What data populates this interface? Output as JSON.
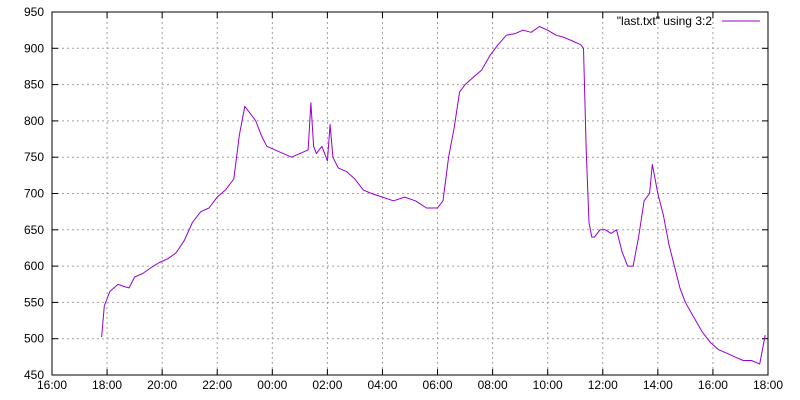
{
  "chart_data": {
    "type": "line",
    "title": "",
    "xlabel": "",
    "ylabel": "",
    "grid": true,
    "legend_placement": "top-right",
    "x_unit": "hours on the time axis (24+ = next day)",
    "xlim": [
      16,
      42
    ],
    "ylim": [
      450,
      950
    ],
    "x_ticks": [
      {
        "v": 16,
        "label": "16:00"
      },
      {
        "v": 18,
        "label": "18:00"
      },
      {
        "v": 20,
        "label": "20:00"
      },
      {
        "v": 22,
        "label": "22:00"
      },
      {
        "v": 24,
        "label": "00:00"
      },
      {
        "v": 26,
        "label": "02:00"
      },
      {
        "v": 28,
        "label": "04:00"
      },
      {
        "v": 30,
        "label": "06:00"
      },
      {
        "v": 32,
        "label": "08:00"
      },
      {
        "v": 34,
        "label": "10:00"
      },
      {
        "v": 36,
        "label": "12:00"
      },
      {
        "v": 38,
        "label": "14:00"
      },
      {
        "v": 40,
        "label": "16:00"
      },
      {
        "v": 42,
        "label": "18:00"
      }
    ],
    "y_ticks": [
      450,
      500,
      550,
      600,
      650,
      700,
      750,
      800,
      850,
      900,
      950
    ],
    "series": [
      {
        "name": "\"last.txt\" using 3:2",
        "color": "#9400d3",
        "x": [
          17.8,
          17.9,
          18.1,
          18.4,
          18.6,
          18.8,
          19.0,
          19.3,
          19.6,
          19.9,
          20.2,
          20.5,
          20.8,
          21.1,
          21.4,
          21.7,
          22.0,
          22.3,
          22.6,
          22.8,
          23.0,
          23.2,
          23.4,
          23.6,
          23.8,
          24.1,
          24.4,
          24.7,
          25.0,
          25.3,
          25.4,
          25.5,
          25.6,
          25.8,
          26.0,
          26.1,
          26.2,
          26.4,
          26.7,
          27.0,
          27.3,
          27.6,
          28.0,
          28.4,
          28.8,
          29.2,
          29.6,
          30.0,
          30.2,
          30.4,
          30.6,
          30.8,
          31.0,
          31.3,
          31.6,
          31.9,
          32.2,
          32.5,
          32.8,
          33.1,
          33.4,
          33.7,
          34.0,
          34.3,
          34.6,
          34.9,
          35.2,
          35.3,
          35.4,
          35.5,
          35.6,
          35.7,
          35.9,
          36.1,
          36.3,
          36.5,
          36.7,
          36.9,
          37.1,
          37.3,
          37.5,
          37.7,
          37.8,
          37.9,
          38.0,
          38.2,
          38.4,
          38.6,
          38.8,
          39.0,
          39.3,
          39.6,
          39.9,
          40.2,
          40.5,
          40.8,
          41.1,
          41.4,
          41.7,
          41.9
        ],
        "y": [
          502,
          545,
          565,
          575,
          572,
          570,
          585,
          590,
          598,
          605,
          610,
          618,
          635,
          660,
          675,
          680,
          695,
          705,
          720,
          780,
          820,
          810,
          800,
          780,
          765,
          760,
          755,
          750,
          755,
          760,
          825,
          765,
          755,
          765,
          745,
          795,
          750,
          735,
          730,
          720,
          705,
          700,
          695,
          690,
          695,
          690,
          680,
          680,
          690,
          750,
          790,
          840,
          850,
          860,
          870,
          890,
          905,
          918,
          920,
          925,
          922,
          930,
          925,
          918,
          915,
          910,
          905,
          900,
          760,
          660,
          640,
          640,
          650,
          650,
          645,
          650,
          620,
          600,
          600,
          640,
          690,
          700,
          740,
          720,
          700,
          670,
          630,
          600,
          570,
          550,
          530,
          510,
          495,
          485,
          480,
          475,
          470,
          470,
          465,
          505
        ]
      }
    ]
  }
}
